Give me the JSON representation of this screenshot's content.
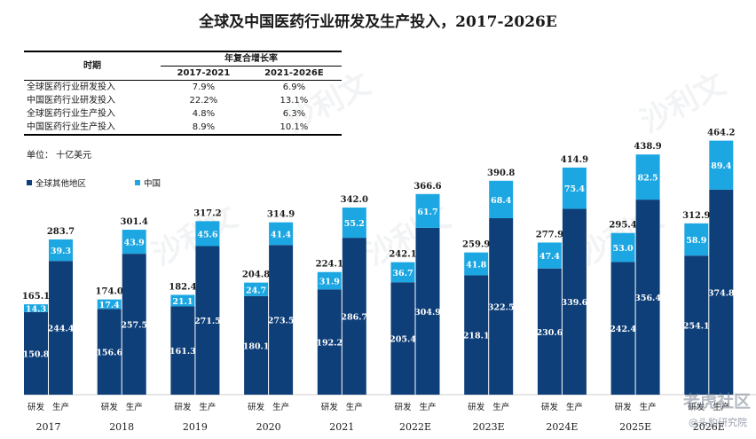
{
  "title": "全球及中国医药行业研发及生产投入，2017-2026E",
  "cagr_table": {
    "header_period": "时期",
    "header_cagr": "年复合增长率",
    "col1": "2017-2021",
    "col2": "2021-2026E",
    "rows": [
      {
        "label": "全球医药行业研发投入",
        "v1": "7.9%",
        "v2": "6.9%"
      },
      {
        "label": "中国医药行业研发投入",
        "v1": "22.2%",
        "v2": "13.1%"
      },
      {
        "label": "全球医药行业生产投入",
        "v1": "4.8%",
        "v2": "6.3%"
      },
      {
        "label": "中国医药行业生产投入",
        "v1": "8.9%",
        "v2": "10.1%"
      }
    ]
  },
  "unit": "单位： 十亿美元",
  "legend": {
    "rest": "全球其他地区",
    "china": "中国"
  },
  "watermark": {
    "brand": "沙利文",
    "site": "老虎社区",
    "handle": "@头豹研究院"
  },
  "colors": {
    "rest": "#0f3f78",
    "china": "#1ca7e2"
  },
  "chart_data": {
    "type": "bar",
    "stacked": true,
    "bar_labels": [
      "研发",
      "生产"
    ],
    "categories": [
      "2017",
      "2018",
      "2019",
      "2020",
      "2021",
      "2022E",
      "2023E",
      "2024E",
      "2025E",
      "2026E"
    ],
    "series": [
      {
        "name": "研发-全球其他地区",
        "values": [
          150.8,
          156.6,
          161.3,
          180.1,
          192.2,
          205.4,
          218.1,
          230.6,
          242.4,
          254.1
        ]
      },
      {
        "name": "研发-中国",
        "values": [
          14.3,
          17.4,
          21.1,
          24.7,
          31.9,
          36.7,
          41.8,
          47.4,
          53.0,
          58.9
        ]
      },
      {
        "name": "生产-全球其他地区",
        "values": [
          244.4,
          257.5,
          271.5,
          273.5,
          286.7,
          304.9,
          322.5,
          339.6,
          356.4,
          374.8
        ]
      },
      {
        "name": "生产-中国",
        "values": [
          39.3,
          43.9,
          45.6,
          41.4,
          55.2,
          61.7,
          68.4,
          75.4,
          82.5,
          89.4
        ]
      }
    ],
    "totals": {
      "研发": [
        165.1,
        174.0,
        182.4,
        204.8,
        224.1,
        242.1,
        259.9,
        277.9,
        295.4,
        312.9
      ],
      "生产": [
        283.7,
        301.4,
        317.2,
        314.9,
        342.0,
        366.6,
        390.8,
        414.9,
        438.9,
        464.2
      ]
    }
  }
}
